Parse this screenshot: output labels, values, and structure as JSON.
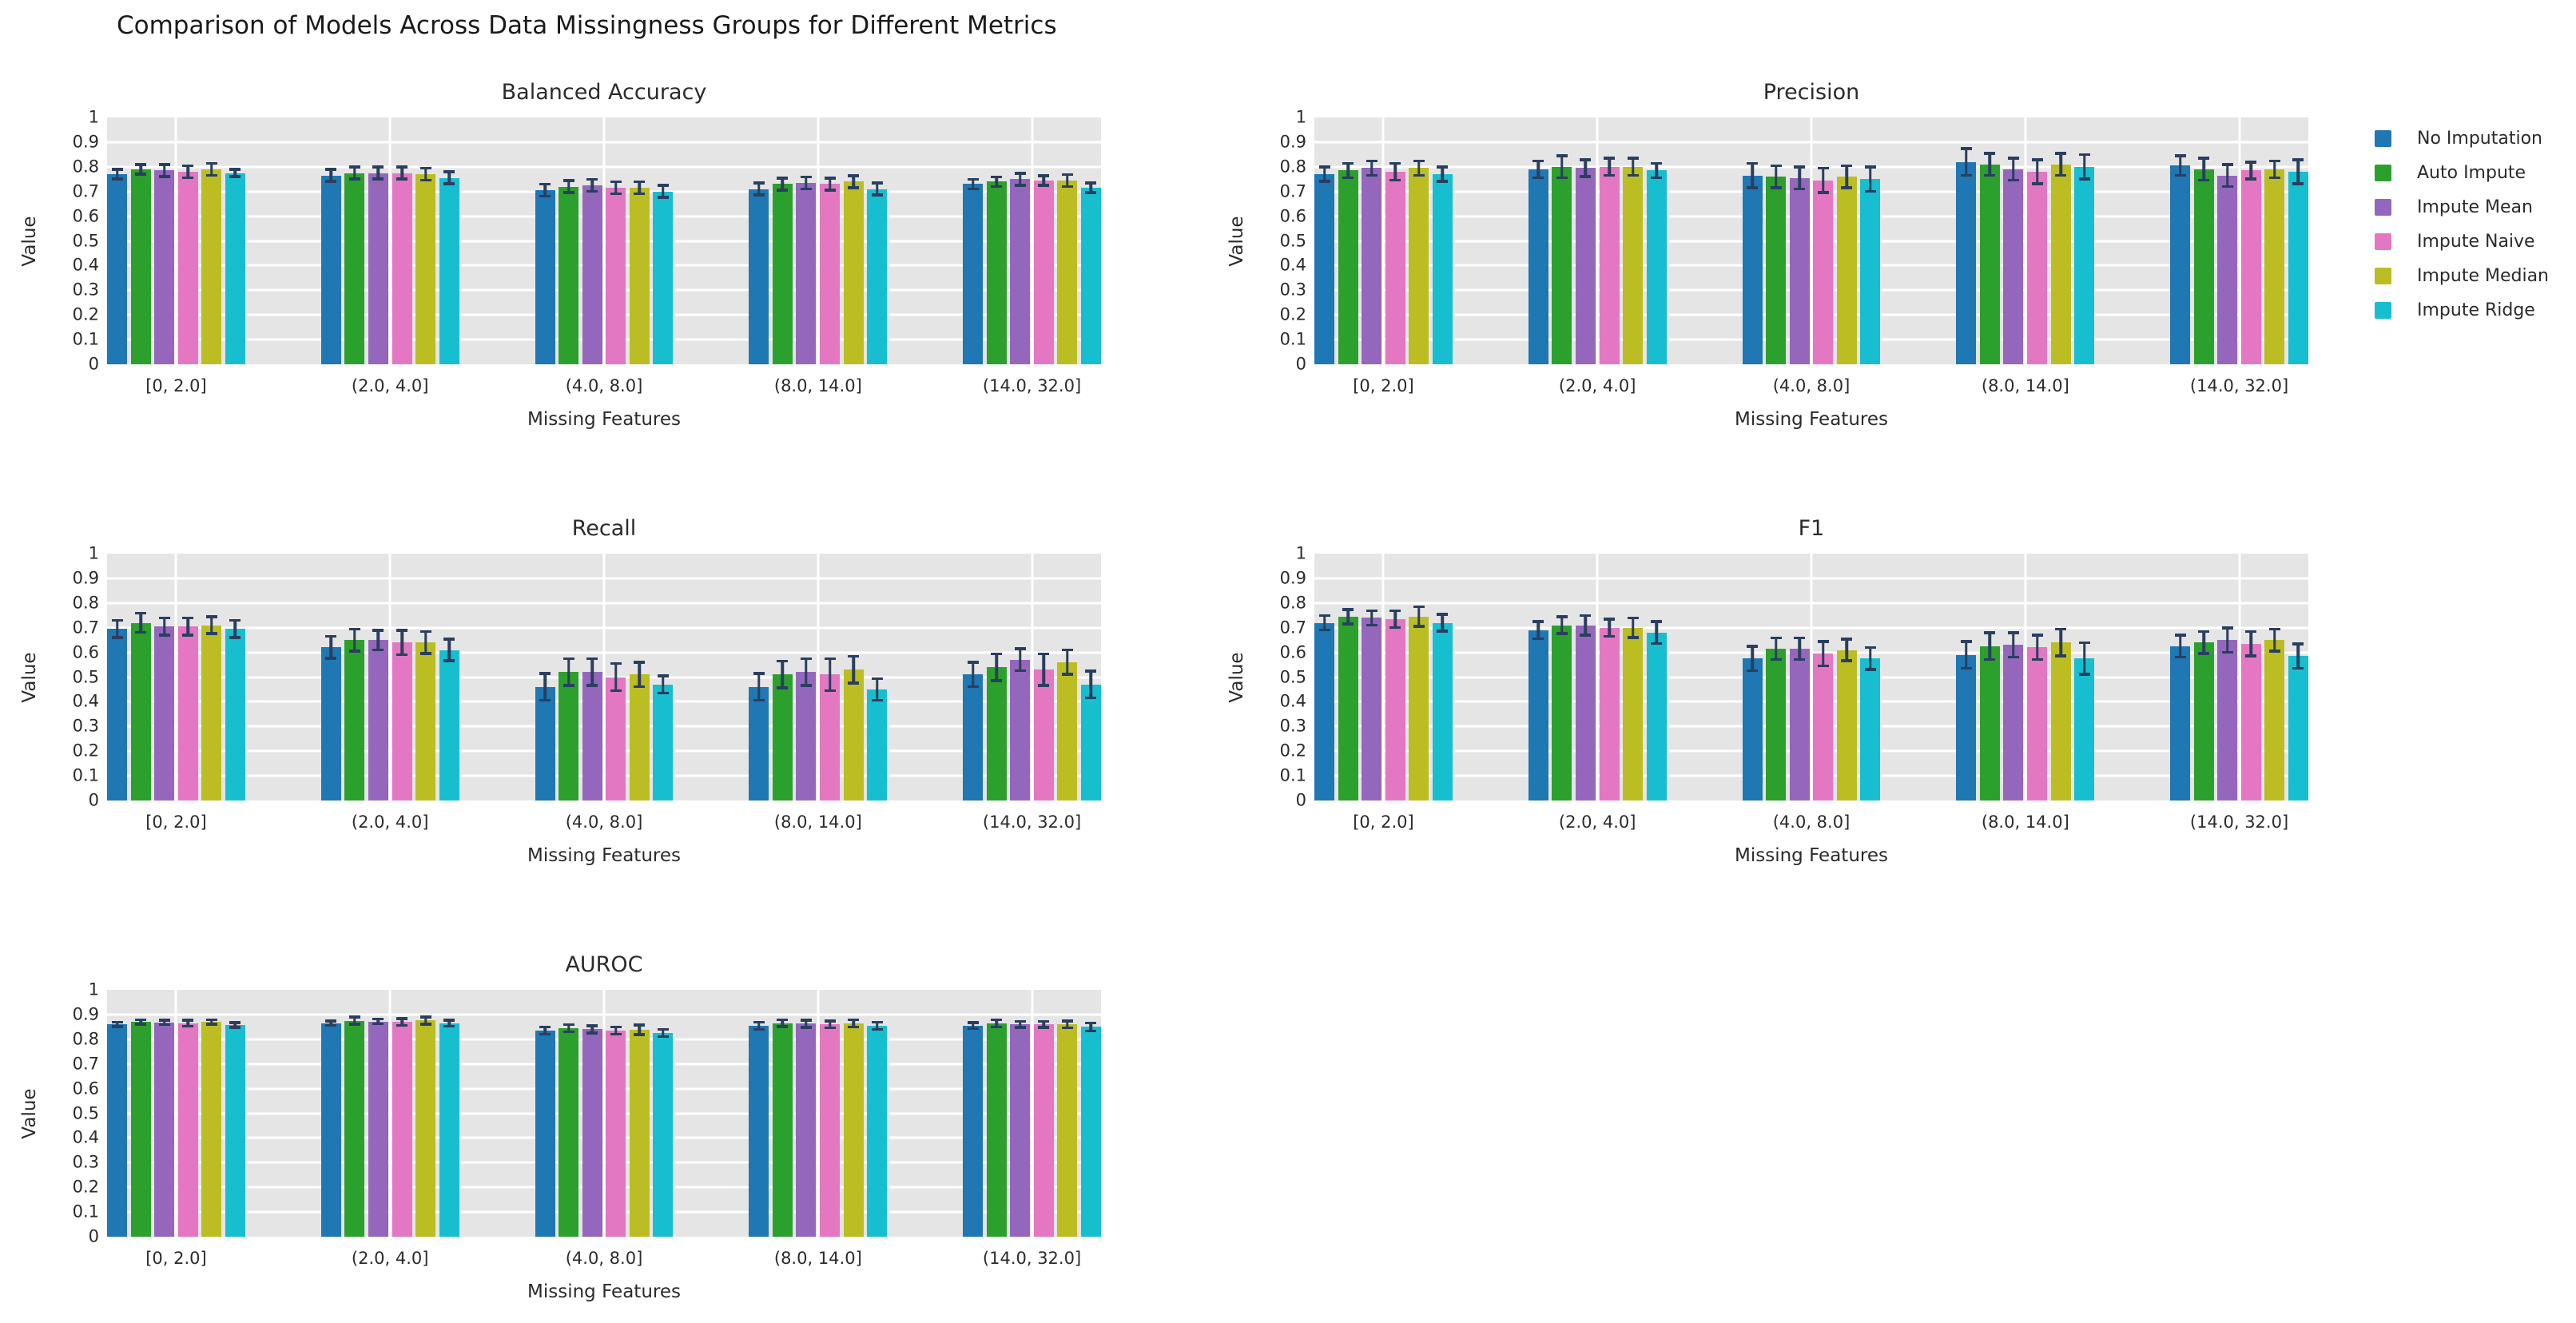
{
  "figure_title": "Comparison of Models Across Data Missingness Groups for Different Metrics",
  "axes": {
    "xlabel": "Missing Features",
    "ylabel": "Value",
    "ylim": [
      0,
      1
    ],
    "yticks": [
      "1",
      "0.9",
      "0.8",
      "0.7",
      "0.6",
      "0.5",
      "0.4",
      "0.3",
      "0.2",
      "0.1",
      "0"
    ],
    "grid": "white-on-gray"
  },
  "categories": [
    "[0, 2.0]",
    "(2.0, 4.0]",
    "(4.0, 8.0]",
    "(8.0, 14.0]",
    "(14.0, 32.0]"
  ],
  "colors": {
    "plot_background": "#e5e5e5",
    "gridline": "#ffffff",
    "error_bar": "#2a3f5f",
    "series": [
      "#1f77b4",
      "#2ca02c",
      "#9467bd",
      "#e377c2",
      "#bcbd22",
      "#17becf"
    ]
  },
  "legend": {
    "position": "top-right",
    "entries": [
      {
        "label": "No Imputation",
        "color": "#1f77b4"
      },
      {
        "label": "Auto Impute",
        "color": "#2ca02c"
      },
      {
        "label": "Impute Mean",
        "color": "#9467bd"
      },
      {
        "label": "Impute Naive",
        "color": "#e377c2"
      },
      {
        "label": "Impute Median",
        "color": "#bcbd22"
      },
      {
        "label": "Impute Ridge",
        "color": "#17becf"
      }
    ]
  },
  "chart_data": [
    {
      "type": "bar",
      "title": "Balanced Accuracy",
      "xlabel": "Missing Features",
      "ylabel": "Value",
      "ylim": [
        0,
        1
      ],
      "categories": [
        "[0, 2.0]",
        "(2.0, 4.0]",
        "(4.0, 8.0]",
        "(8.0, 14.0]",
        "(14.0, 32.0]"
      ],
      "series": [
        {
          "name": "No Imputation",
          "color": "#1f77b4",
          "values": [
            0.77,
            0.765,
            0.705,
            0.71,
            0.73
          ],
          "errors": [
            0.025,
            0.03,
            0.03,
            0.03,
            0.025
          ]
        },
        {
          "name": "Auto Impute",
          "color": "#2ca02c",
          "values": [
            0.79,
            0.775,
            0.72,
            0.73,
            0.74
          ],
          "errors": [
            0.025,
            0.03,
            0.03,
            0.03,
            0.025
          ]
        },
        {
          "name": "Impute Mean",
          "color": "#9467bd",
          "values": [
            0.785,
            0.775,
            0.725,
            0.735,
            0.75
          ],
          "errors": [
            0.03,
            0.03,
            0.03,
            0.03,
            0.03
          ]
        },
        {
          "name": "Impute Naive",
          "color": "#e377c2",
          "values": [
            0.78,
            0.775,
            0.715,
            0.73,
            0.745
          ],
          "errors": [
            0.03,
            0.03,
            0.03,
            0.03,
            0.025
          ]
        },
        {
          "name": "Impute Median",
          "color": "#bcbd22",
          "values": [
            0.79,
            0.77,
            0.715,
            0.74,
            0.745
          ],
          "errors": [
            0.03,
            0.03,
            0.03,
            0.03,
            0.03
          ]
        },
        {
          "name": "Impute Ridge",
          "color": "#17becf",
          "values": [
            0.775,
            0.755,
            0.7,
            0.71,
            0.715
          ],
          "errors": [
            0.02,
            0.03,
            0.03,
            0.03,
            0.025
          ]
        }
      ]
    },
    {
      "type": "bar",
      "title": "Precision",
      "xlabel": "Missing Features",
      "ylabel": "Value",
      "ylim": [
        0,
        1
      ],
      "categories": [
        "[0, 2.0]",
        "(2.0, 4.0]",
        "(4.0, 8.0]",
        "(8.0, 14.0]",
        "(14.0, 32.0]"
      ],
      "series": [
        {
          "name": "No Imputation",
          "color": "#1f77b4",
          "values": [
            0.77,
            0.79,
            0.765,
            0.82,
            0.805
          ],
          "errors": [
            0.035,
            0.04,
            0.055,
            0.06,
            0.045
          ]
        },
        {
          "name": "Auto Impute",
          "color": "#2ca02c",
          "values": [
            0.785,
            0.8,
            0.76,
            0.81,
            0.79
          ],
          "errors": [
            0.035,
            0.05,
            0.05,
            0.05,
            0.05
          ]
        },
        {
          "name": "Impute Mean",
          "color": "#9467bd",
          "values": [
            0.795,
            0.795,
            0.755,
            0.79,
            0.765
          ],
          "errors": [
            0.035,
            0.04,
            0.05,
            0.05,
            0.05
          ]
        },
        {
          "name": "Impute Naive",
          "color": "#e377c2",
          "values": [
            0.78,
            0.8,
            0.745,
            0.78,
            0.785
          ],
          "errors": [
            0.04,
            0.04,
            0.055,
            0.055,
            0.04
          ]
        },
        {
          "name": "Impute Median",
          "color": "#bcbd22",
          "values": [
            0.795,
            0.8,
            0.76,
            0.81,
            0.79
          ],
          "errors": [
            0.035,
            0.04,
            0.05,
            0.05,
            0.04
          ]
        },
        {
          "name": "Impute Ridge",
          "color": "#17becf",
          "values": [
            0.77,
            0.785,
            0.75,
            0.8,
            0.78
          ],
          "errors": [
            0.035,
            0.035,
            0.055,
            0.055,
            0.055
          ]
        }
      ]
    },
    {
      "type": "bar",
      "title": "Recall",
      "xlabel": "Missing Features",
      "ylabel": "Value",
      "ylim": [
        0,
        1
      ],
      "categories": [
        "[0, 2.0]",
        "(2.0, 4.0]",
        "(4.0, 8.0]",
        "(8.0, 14.0]",
        "(14.0, 32.0]"
      ],
      "series": [
        {
          "name": "No Imputation",
          "color": "#1f77b4",
          "values": [
            0.695,
            0.62,
            0.46,
            0.46,
            0.51
          ],
          "errors": [
            0.04,
            0.05,
            0.06,
            0.06,
            0.055
          ]
        },
        {
          "name": "Auto Impute",
          "color": "#2ca02c",
          "values": [
            0.72,
            0.65,
            0.52,
            0.51,
            0.54
          ],
          "errors": [
            0.045,
            0.05,
            0.06,
            0.06,
            0.06
          ]
        },
        {
          "name": "Impute Mean",
          "color": "#9467bd",
          "values": [
            0.705,
            0.65,
            0.52,
            0.52,
            0.57
          ],
          "errors": [
            0.04,
            0.045,
            0.06,
            0.06,
            0.05
          ]
        },
        {
          "name": "Impute Naive",
          "color": "#e377c2",
          "values": [
            0.705,
            0.64,
            0.5,
            0.51,
            0.53
          ],
          "errors": [
            0.04,
            0.055,
            0.06,
            0.07,
            0.07
          ]
        },
        {
          "name": "Impute Median",
          "color": "#bcbd22",
          "values": [
            0.71,
            0.64,
            0.51,
            0.53,
            0.56
          ],
          "errors": [
            0.04,
            0.05,
            0.055,
            0.06,
            0.055
          ]
        },
        {
          "name": "Impute Ridge",
          "color": "#17becf",
          "values": [
            0.695,
            0.61,
            0.47,
            0.45,
            0.47
          ],
          "errors": [
            0.04,
            0.05,
            0.04,
            0.05,
            0.06
          ]
        }
      ]
    },
    {
      "type": "bar",
      "title": "F1",
      "xlabel": "Missing Features",
      "ylabel": "Value",
      "ylim": [
        0,
        1
      ],
      "categories": [
        "[0, 2.0]",
        "(2.0, 4.0]",
        "(4.0, 8.0]",
        "(8.0, 14.0]",
        "(14.0, 32.0]"
      ],
      "series": [
        {
          "name": "No Imputation",
          "color": "#1f77b4",
          "values": [
            0.72,
            0.69,
            0.575,
            0.59,
            0.625
          ],
          "errors": [
            0.035,
            0.04,
            0.055,
            0.06,
            0.05
          ]
        },
        {
          "name": "Auto Impute",
          "color": "#2ca02c",
          "values": [
            0.745,
            0.71,
            0.615,
            0.625,
            0.64
          ],
          "errors": [
            0.035,
            0.04,
            0.05,
            0.06,
            0.05
          ]
        },
        {
          "name": "Impute Mean",
          "color": "#9467bd",
          "values": [
            0.74,
            0.71,
            0.615,
            0.63,
            0.65
          ],
          "errors": [
            0.035,
            0.045,
            0.05,
            0.055,
            0.055
          ]
        },
        {
          "name": "Impute Naive",
          "color": "#e377c2",
          "values": [
            0.735,
            0.7,
            0.595,
            0.62,
            0.635
          ],
          "errors": [
            0.04,
            0.04,
            0.055,
            0.055,
            0.055
          ]
        },
        {
          "name": "Impute Median",
          "color": "#bcbd22",
          "values": [
            0.745,
            0.7,
            0.61,
            0.64,
            0.65
          ],
          "errors": [
            0.045,
            0.045,
            0.05,
            0.06,
            0.05
          ]
        },
        {
          "name": "Impute Ridge",
          "color": "#17becf",
          "values": [
            0.72,
            0.68,
            0.575,
            0.575,
            0.585
          ],
          "errors": [
            0.04,
            0.05,
            0.05,
            0.07,
            0.055
          ]
        }
      ]
    },
    {
      "type": "bar",
      "title": "AUROC",
      "xlabel": "Missing Features",
      "ylabel": "Value",
      "ylim": [
        0,
        1
      ],
      "categories": [
        "[0, 2.0]",
        "(2.0, 4.0]",
        "(4.0, 8.0]",
        "(8.0, 14.0]",
        "(14.0, 32.0]"
      ],
      "series": [
        {
          "name": "No Imputation",
          "color": "#1f77b4",
          "values": [
            0.86,
            0.865,
            0.835,
            0.855,
            0.855
          ],
          "errors": [
            0.015,
            0.015,
            0.02,
            0.02,
            0.018
          ]
        },
        {
          "name": "Auto Impute",
          "color": "#2ca02c",
          "values": [
            0.87,
            0.875,
            0.845,
            0.865,
            0.864
          ],
          "errors": [
            0.015,
            0.02,
            0.02,
            0.02,
            0.02
          ]
        },
        {
          "name": "Impute Mean",
          "color": "#9467bd",
          "values": [
            0.868,
            0.872,
            0.84,
            0.863,
            0.86
          ],
          "errors": [
            0.015,
            0.015,
            0.02,
            0.02,
            0.018
          ]
        },
        {
          "name": "Impute Naive",
          "color": "#e377c2",
          "values": [
            0.865,
            0.87,
            0.835,
            0.86,
            0.86
          ],
          "errors": [
            0.018,
            0.02,
            0.02,
            0.02,
            0.018
          ]
        },
        {
          "name": "Impute Median",
          "color": "#bcbd22",
          "values": [
            0.87,
            0.876,
            0.838,
            0.864,
            0.86
          ],
          "errors": [
            0.015,
            0.02,
            0.025,
            0.02,
            0.02
          ]
        },
        {
          "name": "Impute Ridge",
          "color": "#17becf",
          "values": [
            0.858,
            0.865,
            0.825,
            0.855,
            0.85
          ],
          "errors": [
            0.015,
            0.018,
            0.02,
            0.02,
            0.022
          ]
        }
      ]
    }
  ]
}
